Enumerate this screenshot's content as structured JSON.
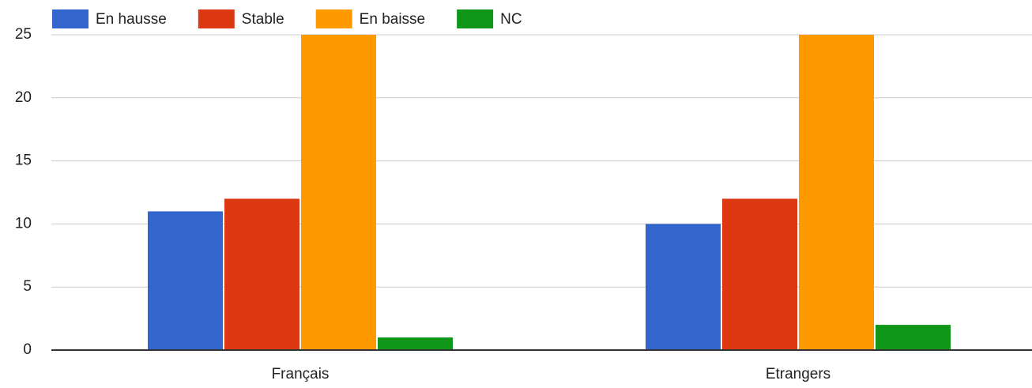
{
  "chart_data": {
    "type": "bar",
    "categories": [
      "Français",
      "Etrangers"
    ],
    "series": [
      {
        "name": "En hausse",
        "color": "#3366cc",
        "values": [
          11,
          10
        ]
      },
      {
        "name": "Stable",
        "color": "#dc3912",
        "values": [
          12,
          12
        ]
      },
      {
        "name": "En baisse",
        "color": "#ff9900",
        "values": [
          25,
          25
        ]
      },
      {
        "name": "NC",
        "color": "#109618",
        "values": [
          1,
          2
        ]
      }
    ],
    "ylim": [
      0,
      25
    ],
    "yticks": [
      0,
      5,
      10,
      15,
      20,
      25
    ],
    "grid": true,
    "legend": "top-left"
  }
}
